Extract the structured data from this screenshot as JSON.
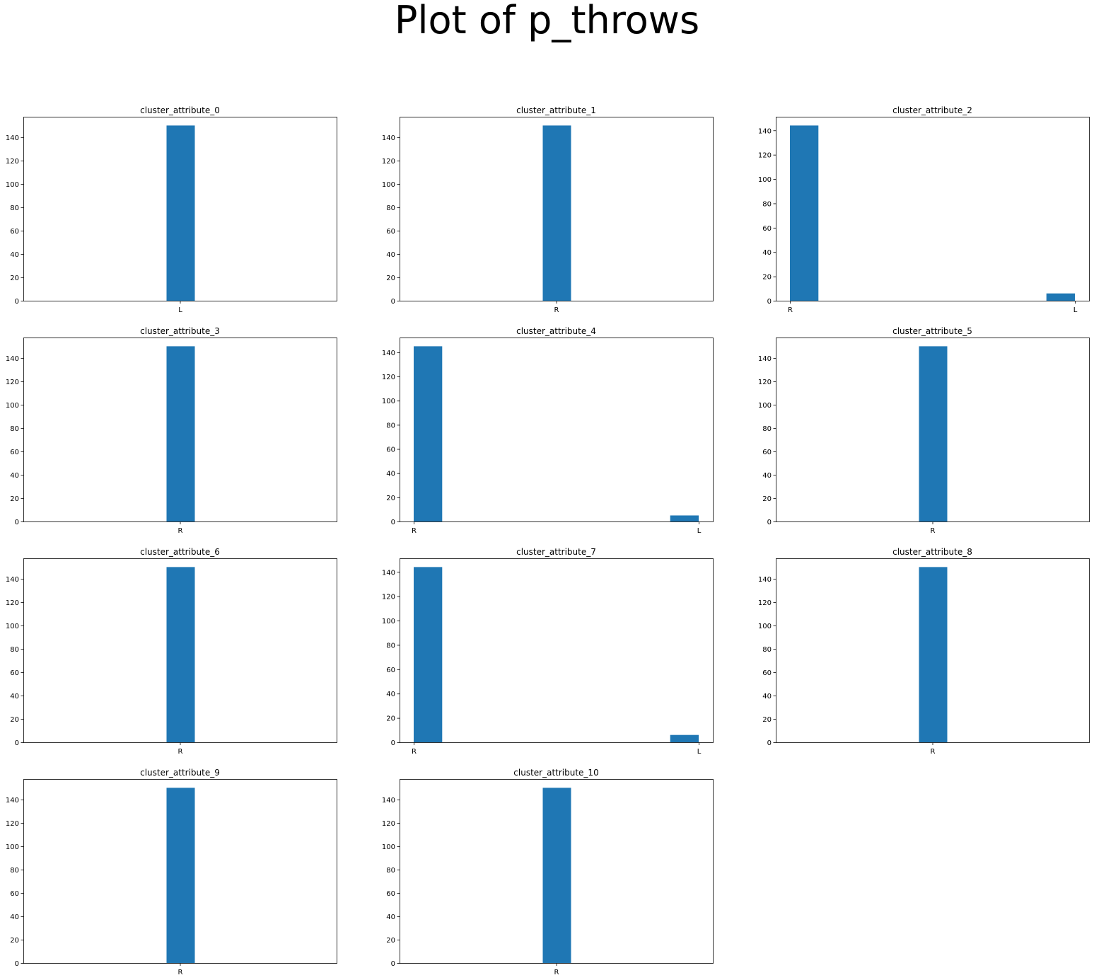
{
  "figure": {
    "title": "Plot of p_throws"
  },
  "style": {
    "bar_color": "#1f77b4"
  },
  "chart_data": [
    {
      "type": "bar",
      "title": "cluster_attribute_0",
      "categories": [
        "L"
      ],
      "values": [
        150
      ],
      "ylim": [
        0,
        157.5
      ],
      "yticks": [
        0,
        20,
        40,
        60,
        80,
        100,
        120,
        140
      ],
      "grid": false
    },
    {
      "type": "bar",
      "title": "cluster_attribute_1",
      "categories": [
        "R"
      ],
      "values": [
        150
      ],
      "ylim": [
        0,
        157.5
      ],
      "yticks": [
        0,
        20,
        40,
        60,
        80,
        100,
        120,
        140
      ],
      "grid": false
    },
    {
      "type": "bar",
      "title": "cluster_attribute_2",
      "categories": [
        "R",
        "L"
      ],
      "values": [
        144,
        6
      ],
      "ylim": [
        0,
        151.2
      ],
      "yticks": [
        0,
        20,
        40,
        60,
        80,
        100,
        120,
        140
      ],
      "grid": false
    },
    {
      "type": "bar",
      "title": "cluster_attribute_3",
      "categories": [
        "R"
      ],
      "values": [
        150
      ],
      "ylim": [
        0,
        157.5
      ],
      "yticks": [
        0,
        20,
        40,
        60,
        80,
        100,
        120,
        140
      ],
      "grid": false
    },
    {
      "type": "bar",
      "title": "cluster_attribute_4",
      "categories": [
        "R",
        "L"
      ],
      "values": [
        145,
        5
      ],
      "ylim": [
        0,
        152.25
      ],
      "yticks": [
        0,
        20,
        40,
        60,
        80,
        100,
        120,
        140
      ],
      "grid": false
    },
    {
      "type": "bar",
      "title": "cluster_attribute_5",
      "categories": [
        "R"
      ],
      "values": [
        150
      ],
      "ylim": [
        0,
        157.5
      ],
      "yticks": [
        0,
        20,
        40,
        60,
        80,
        100,
        120,
        140
      ],
      "grid": false
    },
    {
      "type": "bar",
      "title": "cluster_attribute_6",
      "categories": [
        "R"
      ],
      "values": [
        150
      ],
      "ylim": [
        0,
        157.5
      ],
      "yticks": [
        0,
        20,
        40,
        60,
        80,
        100,
        120,
        140
      ],
      "grid": false
    },
    {
      "type": "bar",
      "title": "cluster_attribute_7",
      "categories": [
        "R",
        "L"
      ],
      "values": [
        144,
        6
      ],
      "ylim": [
        0,
        151.2
      ],
      "yticks": [
        0,
        20,
        40,
        60,
        80,
        100,
        120,
        140
      ],
      "grid": false
    },
    {
      "type": "bar",
      "title": "cluster_attribute_8",
      "categories": [
        "R"
      ],
      "values": [
        150
      ],
      "ylim": [
        0,
        157.5
      ],
      "yticks": [
        0,
        20,
        40,
        60,
        80,
        100,
        120,
        140
      ],
      "grid": false
    },
    {
      "type": "bar",
      "title": "cluster_attribute_9",
      "categories": [
        "R"
      ],
      "values": [
        150
      ],
      "ylim": [
        0,
        157.5
      ],
      "yticks": [
        0,
        20,
        40,
        60,
        80,
        100,
        120,
        140
      ],
      "grid": false
    },
    {
      "type": "bar",
      "title": "cluster_attribute_10",
      "categories": [
        "R"
      ],
      "values": [
        150
      ],
      "ylim": [
        0,
        157.5
      ],
      "yticks": [
        0,
        20,
        40,
        60,
        80,
        100,
        120,
        140
      ],
      "grid": false
    }
  ]
}
